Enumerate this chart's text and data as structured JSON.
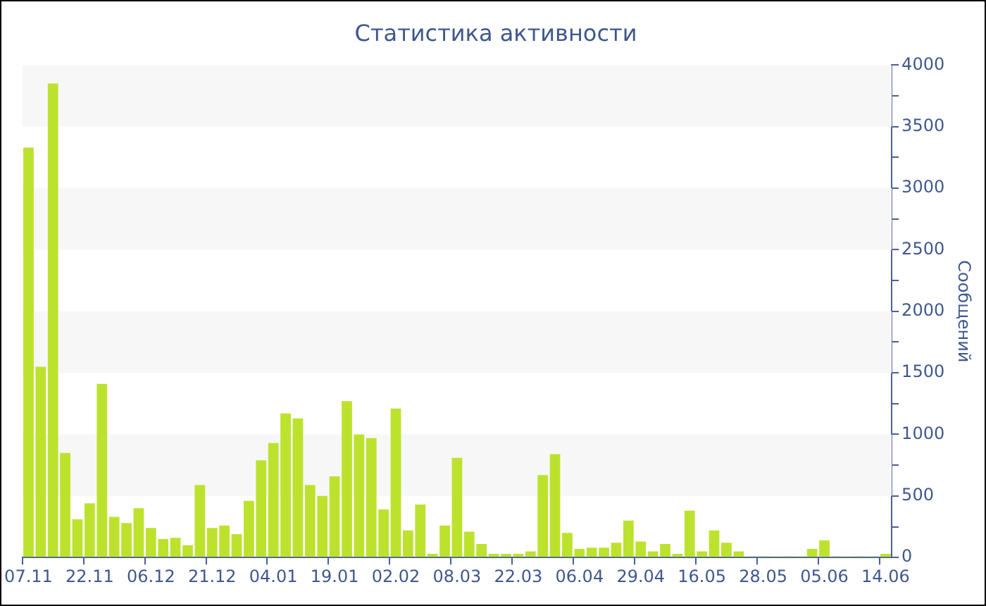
{
  "chart_data": {
    "type": "bar",
    "title": "Статистика активности",
    "ylabel": "Сообщений",
    "categories": [
      "07.11",
      null,
      null,
      null,
      null,
      "22.11",
      null,
      null,
      null,
      null,
      "06.12",
      null,
      null,
      null,
      null,
      "21.12",
      null,
      null,
      null,
      null,
      "04.01",
      null,
      null,
      null,
      null,
      "19.01",
      null,
      null,
      null,
      null,
      "02.02",
      null,
      null,
      null,
      null,
      "08.03",
      null,
      null,
      null,
      null,
      "22.03",
      null,
      null,
      null,
      null,
      "06.04",
      null,
      null,
      null,
      null,
      "29.04",
      null,
      null,
      null,
      null,
      "16.05",
      null,
      null,
      null,
      null,
      "28.05",
      null,
      null,
      null,
      null,
      "05.06",
      null,
      null,
      null,
      null,
      "14.06"
    ],
    "values": [
      3330,
      1550,
      3850,
      850,
      310,
      440,
      1410,
      330,
      280,
      400,
      240,
      150,
      160,
      100,
      590,
      240,
      260,
      190,
      460,
      790,
      930,
      1170,
      1130,
      590,
      500,
      660,
      1270,
      1000,
      970,
      390,
      1210,
      220,
      430,
      30,
      260,
      810,
      210,
      110,
      30,
      30,
      30,
      50,
      670,
      840,
      200,
      70,
      80,
      80,
      120,
      300,
      130,
      50,
      110,
      30,
      380,
      50,
      220,
      120,
      50,
      10,
      10,
      10,
      10,
      10,
      70,
      140,
      10,
      10,
      10,
      10,
      30
    ],
    "color": "#bde22e",
    "ylim": [
      0,
      4000
    ],
    "yticks": [
      0,
      {
        "value": 250,
        "label": null
      },
      500,
      {
        "value": 750,
        "label": null
      },
      1000,
      {
        "value": 1250,
        "label": null
      },
      1500,
      {
        "value": 1750,
        "label": null
      },
      2000,
      {
        "value": 2250,
        "label": null
      },
      2500,
      {
        "value": 2750,
        "label": null
      },
      3000,
      {
        "value": 3250,
        "label": null
      },
      3500,
      {
        "value": 3750,
        "label": null
      },
      4000
    ],
    "bands": [
      {
        "axis": "y",
        "from": 500,
        "to": 1000,
        "color": "#f7f7f7"
      },
      {
        "axis": "y",
        "from": 1500,
        "to": 2000,
        "color": "#f7f7f7"
      },
      {
        "axis": "y",
        "from": 2500,
        "to": 3000,
        "color": "#f7f7f7"
      },
      {
        "axis": "y",
        "from": 3500,
        "to": 4000,
        "color": "#f7f7f7"
      }
    ],
    "grid": false,
    "legend": false
  }
}
